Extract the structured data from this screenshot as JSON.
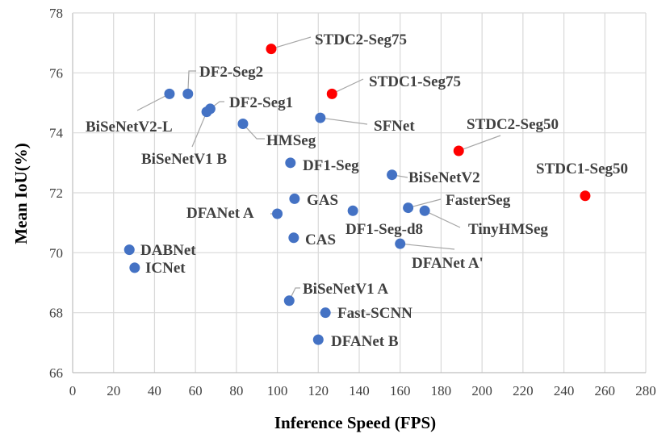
{
  "chart_data": {
    "type": "scatter",
    "title": "",
    "xlabel": "Inference Speed (FPS)",
    "ylabel": "Mean IoU(%)",
    "xlim": [
      0,
      280
    ],
    "ylim": [
      66,
      78
    ],
    "xticks": [
      0,
      20,
      40,
      60,
      80,
      100,
      120,
      140,
      160,
      180,
      200,
      220,
      240,
      260,
      280
    ],
    "yticks": [
      66,
      68,
      70,
      72,
      74,
      76,
      78
    ],
    "grid": true,
    "legend": "none",
    "colors": {
      "highlight": "#ff0000",
      "default": "#4472c4",
      "grid": "#d9d9d9",
      "label": "#404040"
    },
    "points": [
      {
        "name": "STDC2-Seg75",
        "x": 97.0,
        "y": 76.8,
        "highlight": true
      },
      {
        "name": "STDC1-Seg75",
        "x": 126.7,
        "y": 75.3,
        "highlight": true
      },
      {
        "name": "STDC2-Seg50",
        "x": 188.6,
        "y": 73.4,
        "highlight": true
      },
      {
        "name": "STDC1-Seg50",
        "x": 250.4,
        "y": 71.9,
        "highlight": true
      },
      {
        "name": "BiSeNetV2-L",
        "x": 47.3,
        "y": 75.3
      },
      {
        "name": "DF2-Seg2",
        "x": 56.3,
        "y": 75.3
      },
      {
        "name": "DF2-Seg1",
        "x": 67.2,
        "y": 74.8
      },
      {
        "name": "BiSeNetV1 B",
        "x": 65.5,
        "y": 74.7
      },
      {
        "name": "HMSeg",
        "x": 83.2,
        "y": 74.3
      },
      {
        "name": "SFNet",
        "x": 121.0,
        "y": 74.5
      },
      {
        "name": "DF1-Seg",
        "x": 106.4,
        "y": 73.0
      },
      {
        "name": "BiSeNetV2",
        "x": 156.0,
        "y": 72.6
      },
      {
        "name": "GAS",
        "x": 108.4,
        "y": 71.8
      },
      {
        "name": "DFANet A",
        "x": 100.0,
        "y": 71.3
      },
      {
        "name": "DF1-Seg-d8",
        "x": 136.9,
        "y": 71.4
      },
      {
        "name": "FasterSeg",
        "x": 163.9,
        "y": 71.5
      },
      {
        "name": "TinyHMSeg",
        "x": 172.0,
        "y": 71.4
      },
      {
        "name": "CAS",
        "x": 108.0,
        "y": 70.5
      },
      {
        "name": "DFANet A'",
        "x": 160.0,
        "y": 70.3
      },
      {
        "name": "DABNet",
        "x": 27.7,
        "y": 70.1
      },
      {
        "name": "ICNet",
        "x": 30.3,
        "y": 69.5
      },
      {
        "name": "BiSeNetV1 A",
        "x": 105.8,
        "y": 68.4
      },
      {
        "name": "Fast-SCNN",
        "x": 123.5,
        "y": 68.0
      },
      {
        "name": "DFANet B",
        "x": 120.0,
        "y": 67.1
      }
    ]
  }
}
